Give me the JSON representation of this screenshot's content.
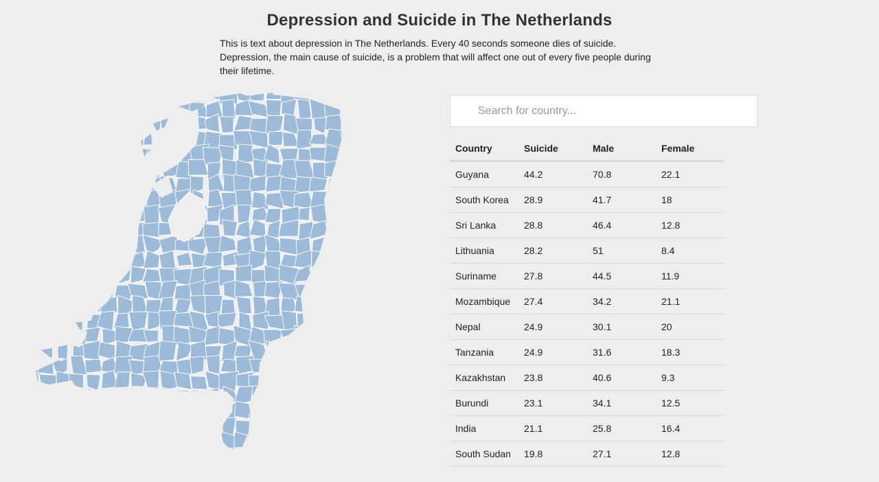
{
  "header": {
    "title": "Depression and Suicide in The Netherlands",
    "intro": "This is text about depression in The Netherlands. Every 40 seconds someone dies of suicide. Depression, the main cause of suicide, is a problem that will affect one out of every five people during their lifetime."
  },
  "map": {
    "fill_color": "#9dbad9",
    "border_color": "#ffffff"
  },
  "search": {
    "placeholder": "Search for country..."
  },
  "table": {
    "columns": [
      "Country",
      "Suicide",
      "Male",
      "Female"
    ],
    "rows": [
      [
        "Guyana",
        "44.2",
        "70.8",
        "22.1"
      ],
      [
        "South Korea",
        "28.9",
        "41.7",
        "18"
      ],
      [
        "Sri Lanka",
        "28.8",
        "46.4",
        "12.8"
      ],
      [
        "Lithuania",
        "28.2",
        "51",
        "8.4"
      ],
      [
        "Suriname",
        "27.8",
        "44.5",
        "11.9"
      ],
      [
        "Mozambique",
        "27.4",
        "34.2",
        "21.1"
      ],
      [
        "Nepal",
        "24.9",
        "30.1",
        "20"
      ],
      [
        "Tanzania",
        "24.9",
        "31.6",
        "18.3"
      ],
      [
        "Kazakhstan",
        "23.8",
        "40.6",
        "9.3"
      ],
      [
        "Burundi",
        "23.1",
        "34.1",
        "12.5"
      ],
      [
        "India",
        "21.1",
        "25.8",
        "16.4"
      ],
      [
        "South Sudan",
        "19.8",
        "27.1",
        "12.8"
      ]
    ]
  }
}
